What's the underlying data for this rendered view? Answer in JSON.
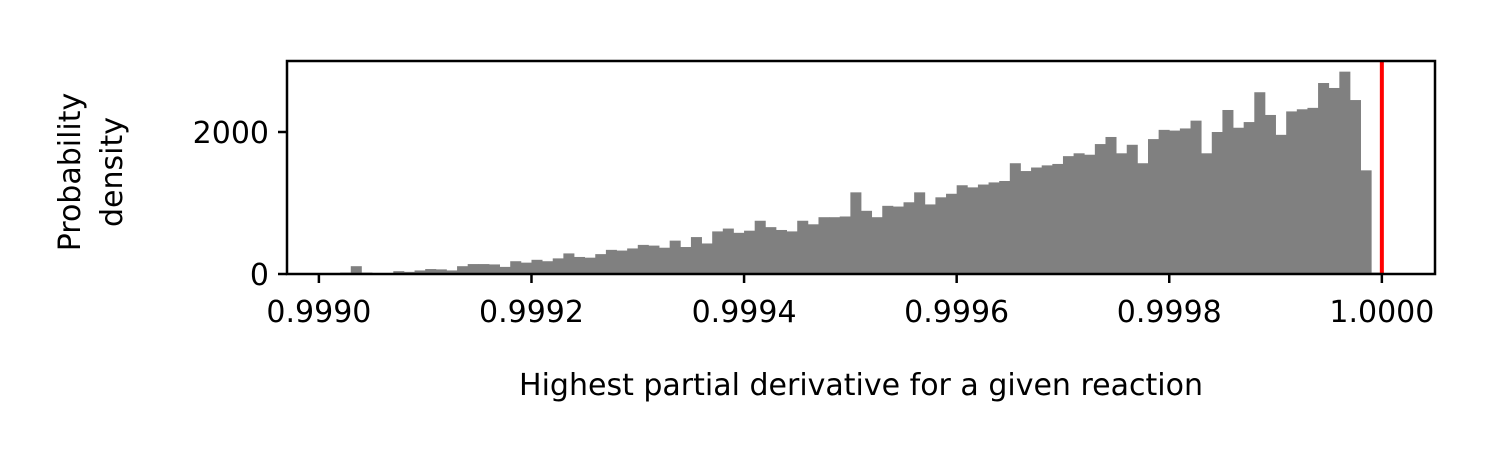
{
  "chart_data": {
    "type": "bar",
    "title": "",
    "xlabel": "Highest partial derivative for a given reaction",
    "ylabel_lines": [
      "Probability",
      "density"
    ],
    "xlim": [
      0.99897,
      1.00005
    ],
    "ylim": [
      0,
      3000
    ],
    "x_ticks": [
      {
        "value": 0.999,
        "label": "0.9990"
      },
      {
        "value": 0.9992,
        "label": "0.9992"
      },
      {
        "value": 0.9994,
        "label": "0.9994"
      },
      {
        "value": 0.9996,
        "label": "0.9996"
      },
      {
        "value": 0.9998,
        "label": "0.9998"
      },
      {
        "value": 1.0,
        "label": "1.0000"
      }
    ],
    "y_ticks": [
      {
        "value": 0,
        "label": "0"
      },
      {
        "value": 2000,
        "label": "2000"
      }
    ],
    "bin_start": 0.999,
    "bin_width": 1e-05,
    "bar_color": "#808080",
    "densities": [
      5,
      5,
      20,
      110,
      20,
      5,
      10,
      40,
      30,
      50,
      70,
      65,
      50,
      110,
      140,
      140,
      135,
      100,
      180,
      160,
      200,
      180,
      220,
      290,
      240,
      230,
      280,
      340,
      330,
      360,
      410,
      400,
      370,
      470,
      380,
      520,
      430,
      600,
      640,
      580,
      610,
      750,
      660,
      620,
      600,
      750,
      700,
      800,
      800,
      810,
      1150,
      890,
      800,
      960,
      950,
      1010,
      1150,
      980,
      1080,
      1130,
      1250,
      1220,
      1260,
      1290,
      1310,
      1560,
      1450,
      1500,
      1530,
      1550,
      1660,
      1700,
      1680,
      1830,
      1930,
      1700,
      1820,
      1560,
      1900,
      2030,
      2020,
      2050,
      2160,
      1700,
      2000,
      2310,
      2060,
      2140,
      2560,
      2240,
      1960,
      2290,
      2320,
      2340,
      2690,
      2620,
      2850,
      2450,
      1460,
      20
    ],
    "reference_line": {
      "x": 1.0,
      "color": "#ff0000"
    }
  }
}
